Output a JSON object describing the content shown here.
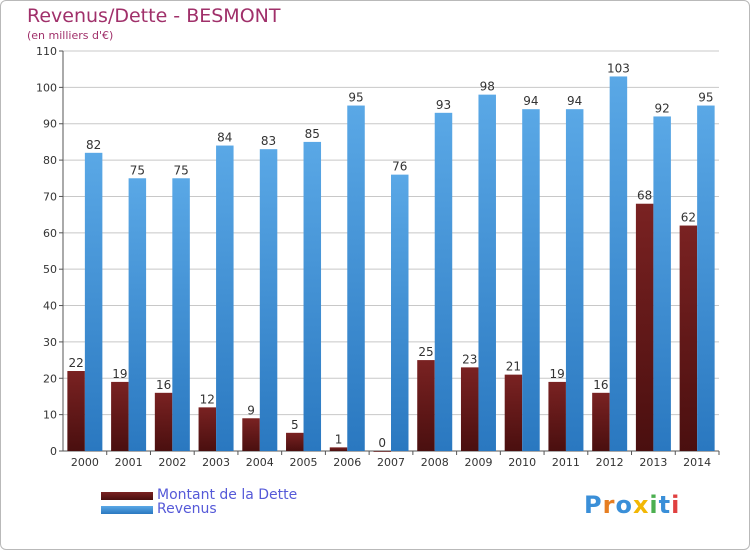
{
  "title": "Revenus/Dette - BESMONT",
  "subtitle": "(en milliers d'€)",
  "colors": {
    "dette": "#7a2222",
    "dette_dark": "#4a0f0f",
    "revenus": "#5aa8e6",
    "revenus_dark": "#2a78c0",
    "grid": "#c8c8c8",
    "axis": "#555555",
    "title": "#a0306a",
    "legend_text": "#5559d8"
  },
  "chart_data": {
    "type": "bar",
    "title": "Revenus/Dette - BESMONT",
    "ylabel": "(en milliers d'€)",
    "xlabel": "",
    "ylim": [
      0,
      110
    ],
    "yticks": [
      0,
      10,
      20,
      30,
      40,
      50,
      60,
      70,
      80,
      90,
      100,
      110
    ],
    "grid": true,
    "categories": [
      "2000",
      "2001",
      "2002",
      "2003",
      "2004",
      "2005",
      "2006",
      "2007",
      "2008",
      "2009",
      "2010",
      "2011",
      "2012",
      "2013",
      "2014"
    ],
    "series": [
      {
        "name": "Montant de la Dette",
        "values": [
          22,
          19,
          16,
          12,
          9,
          5,
          1,
          0,
          25,
          23,
          21,
          19,
          16,
          68,
          62
        ]
      },
      {
        "name": "Revenus",
        "values": [
          82,
          75,
          75,
          84,
          83,
          85,
          95,
          76,
          93,
          98,
          94,
          94,
          103,
          92,
          95
        ]
      }
    ],
    "legend_position": "bottom-left"
  },
  "legend": {
    "dette_label": "Montant de la Dette",
    "revenus_label": "Revenus"
  },
  "logo": {
    "text": "Proxiti",
    "letters": [
      {
        "ch": "P",
        "color": "#3a8fd8"
      },
      {
        "ch": "r",
        "color": "#e67e22"
      },
      {
        "ch": "o",
        "color": "#3a8fd8"
      },
      {
        "ch": "x",
        "color": "#f2b705"
      },
      {
        "ch": "i",
        "color": "#4caf50"
      },
      {
        "ch": "t",
        "color": "#3a8fd8"
      },
      {
        "ch": "i",
        "color": "#e04040"
      }
    ]
  }
}
